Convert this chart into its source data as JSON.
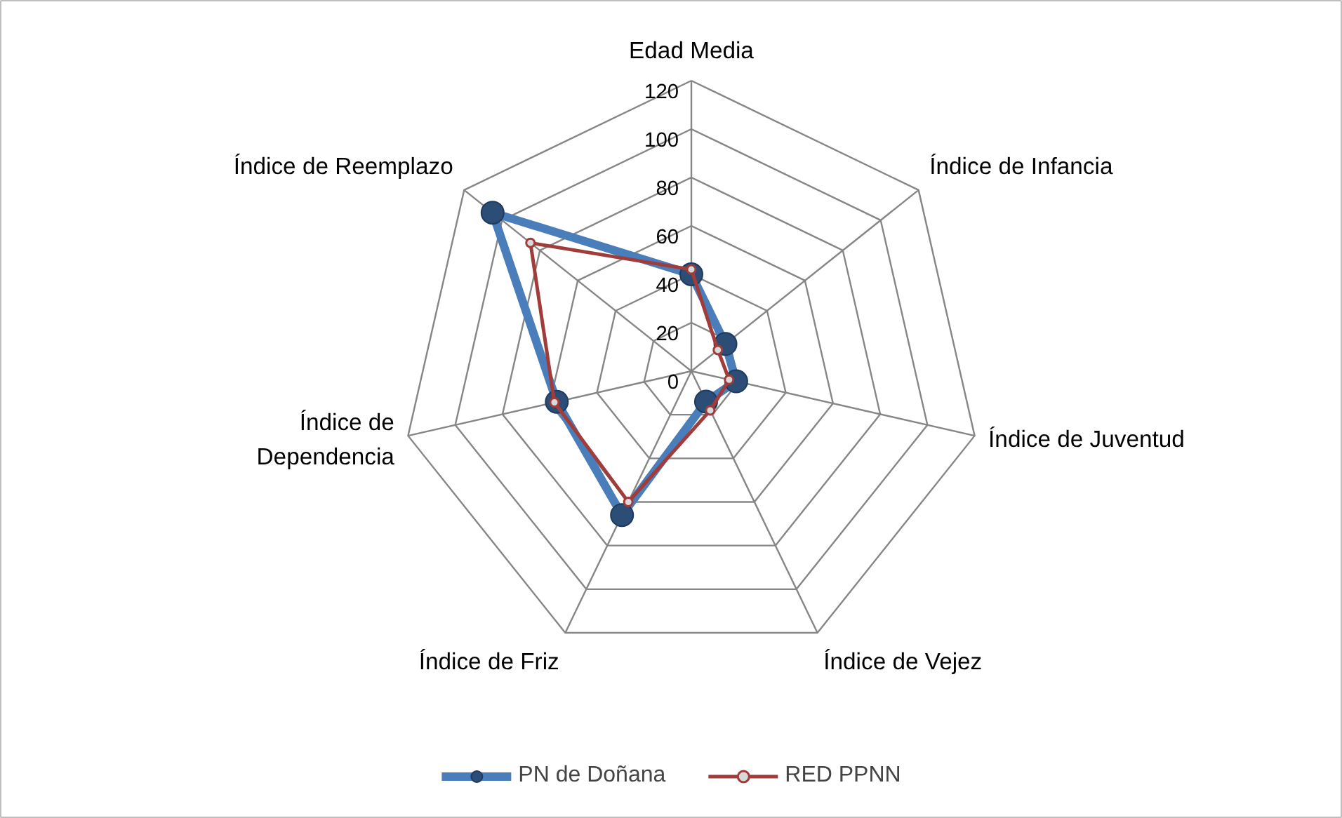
{
  "chart_data": {
    "type": "radar",
    "categories": [
      "Edad Media",
      "Índice de Infancia",
      "Índice de Juventud",
      "Índice de Vejez",
      "Índice de Friz",
      "Índice de Dependencia",
      "Índice de Reemplazo"
    ],
    "series": [
      {
        "name": "PN de Doñana",
        "color": "#4a7ebb",
        "values": [
          40,
          18,
          19,
          14,
          66,
          57,
          105
        ]
      },
      {
        "name": "RED PPNN",
        "color": "#a03c3a",
        "values": [
          42,
          14,
          16,
          18,
          60,
          58,
          85
        ]
      }
    ],
    "ylim": [
      0,
      120
    ],
    "yticks": [
      0,
      20,
      40,
      60,
      80,
      100,
      120
    ],
    "grid": true,
    "legend": "bottom",
    "marker": "circle"
  }
}
